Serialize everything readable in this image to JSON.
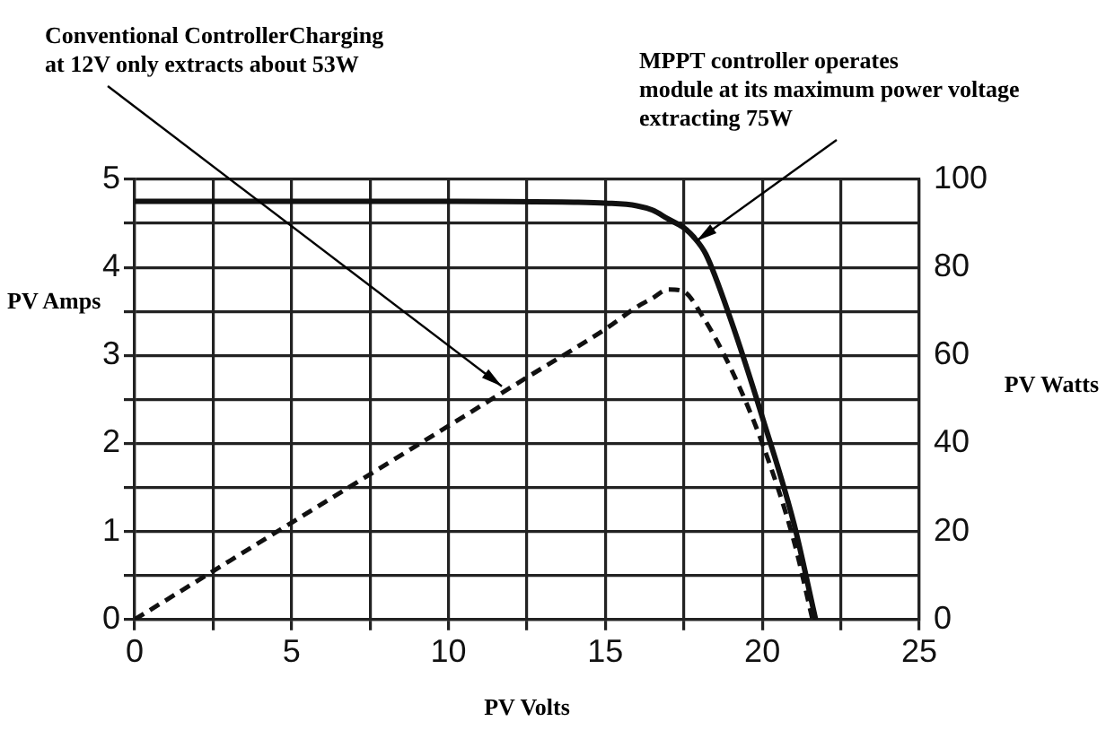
{
  "chart_data": {
    "type": "line",
    "xlabel": "PV Volts",
    "ylabel": "PV Amps",
    "y2label": "PV Watts",
    "series": [
      {
        "type": "line",
        "color": "#111111",
        "line_style": "solid",
        "x": [
          0,
          5,
          10,
          14,
          15,
          16,
          16.5,
          17,
          17.5,
          17.8,
          18.2,
          19,
          20,
          21,
          21.7
        ],
        "values": [
          4.75,
          4.75,
          4.75,
          4.74,
          4.73,
          4.7,
          4.65,
          4.55,
          4.45,
          4.35,
          4.15,
          3.4,
          2.3,
          1.1,
          0
        ]
      },
      {
        "type": "line",
        "color": "#111111",
        "line_style": "dashed",
        "axis": "y2",
        "x": [
          0,
          2.5,
          5,
          7.5,
          10,
          12.5,
          15,
          16,
          16.5,
          17,
          17.5,
          18,
          19,
          20,
          21,
          21.6
        ],
        "values": [
          0,
          11,
          22,
          33,
          44,
          55,
          66,
          71,
          73,
          75,
          74.5,
          70,
          57,
          40,
          18,
          0
        ]
      }
    ],
    "xlim": [
      0,
      25
    ],
    "xticks": [
      0,
      {
        "value": 2.5,
        "label": null
      },
      5,
      {
        "value": 7.5,
        "label": null
      },
      10,
      {
        "value": 12.5,
        "label": null
      },
      15,
      {
        "value": 17.5,
        "label": null
      },
      20,
      {
        "value": 22.5,
        "label": null
      },
      25
    ],
    "ylim": [
      0,
      5
    ],
    "yticks": [
      0,
      {
        "value": 0.5,
        "label": null
      },
      1,
      {
        "value": 1.5,
        "label": null
      },
      2,
      {
        "value": 2.5,
        "label": null
      },
      3,
      {
        "value": 3.5,
        "label": null
      },
      4,
      {
        "value": 4.5,
        "label": null
      },
      5
    ],
    "y2lim": [
      0,
      100
    ],
    "y2ticks": [
      0,
      20,
      40,
      60,
      80,
      100
    ],
    "grid": true,
    "legend": false,
    "marker": "none",
    "annotations": [
      {
        "text": "Conventional ControllerCharging\nat 12V only extracts about 53W",
        "x": 11.7,
        "y": 2.65
      },
      {
        "text": "MPPT controller operates\nmodule at its maximum power voltage\nextracting 75W",
        "x": 17.9,
        "y": 4.3
      }
    ]
  }
}
